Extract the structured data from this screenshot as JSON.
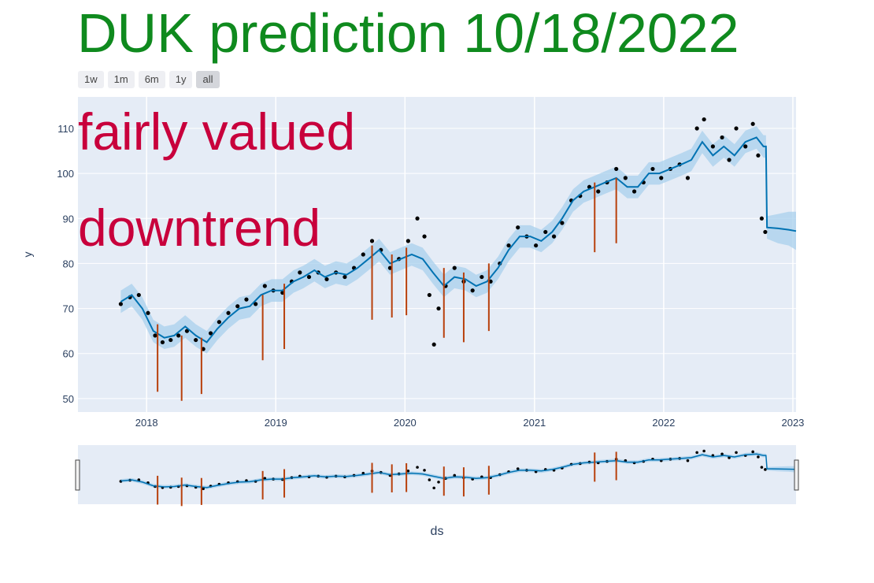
{
  "title": "DUK prediction 10/18/2022",
  "range_selector": {
    "buttons": [
      "1w",
      "1m",
      "6m",
      "1y",
      "all"
    ],
    "active": "all"
  },
  "annotations": [
    "fairly valued",
    "downtrend"
  ],
  "colors": {
    "title": "#0f8a1e",
    "annotation": "#c8003c",
    "plot_bg": "#e5ecf6",
    "points": "#000000",
    "trend": "#0072b2",
    "band": "#a8d0ec",
    "changepoints": "#b8400c"
  },
  "chart_data": {
    "type": "line",
    "xlabel": "ds",
    "ylabel": "y",
    "x_ticks": [
      "2018",
      "2019",
      "2020",
      "2021",
      "2022",
      "2023"
    ],
    "y_ticks": [
      50,
      60,
      70,
      80,
      90,
      100,
      110
    ],
    "xlim": [
      "2017-06-21",
      "2023-01-10"
    ],
    "ylim": [
      47,
      117
    ],
    "grid": true,
    "rangeslider": true,
    "series": [
      {
        "style": "markers",
        "x": [
          "2017-10-20",
          "2017-11-15",
          "2017-12-10",
          "2018-01-05",
          "2018-01-25",
          "2018-02-15",
          "2018-03-10",
          "2018-04-01",
          "2018-04-25",
          "2018-05-20",
          "2018-06-10",
          "2018-07-01",
          "2018-07-25",
          "2018-08-20",
          "2018-09-15",
          "2018-10-10",
          "2018-11-05",
          "2018-12-01",
          "2018-12-25",
          "2019-01-20",
          "2019-02-15",
          "2019-03-10",
          "2019-04-05",
          "2019-05-01",
          "2019-05-25",
          "2019-06-20",
          "2019-07-15",
          "2019-08-10",
          "2019-09-05",
          "2019-09-30",
          "2019-10-25",
          "2019-11-20",
          "2019-12-15",
          "2020-01-10",
          "2020-02-05",
          "2020-02-25",
          "2020-03-10",
          "2020-03-23",
          "2020-04-05",
          "2020-04-25",
          "2020-05-20",
          "2020-06-15",
          "2020-07-10",
          "2020-08-05",
          "2020-08-30",
          "2020-09-25",
          "2020-10-20",
          "2020-11-15",
          "2020-12-10",
          "2021-01-05",
          "2021-02-01",
          "2021-02-25",
          "2021-03-20",
          "2021-04-15",
          "2021-05-10",
          "2021-06-05",
          "2021-06-30",
          "2021-07-25",
          "2021-08-20",
          "2021-09-15",
          "2021-10-10",
          "2021-11-05",
          "2021-12-01",
          "2021-12-25",
          "2022-01-20",
          "2022-02-15",
          "2022-03-10",
          "2022-04-05",
          "2022-04-25",
          "2022-05-20",
          "2022-06-15",
          "2022-07-05",
          "2022-07-25",
          "2022-08-20",
          "2022-09-10",
          "2022-09-25",
          "2022-10-05",
          "2022-10-15"
        ],
        "y": [
          71,
          72.5,
          73,
          69,
          64,
          62.5,
          63,
          64,
          65,
          63,
          61,
          64.5,
          67,
          69,
          70.5,
          72,
          71,
          75,
          74,
          73.5,
          76,
          78,
          77,
          78,
          76.5,
          78,
          77,
          79,
          82,
          85,
          83,
          79,
          81,
          85,
          90,
          86,
          73,
          62,
          70,
          75,
          79,
          76,
          74,
          77,
          76,
          80,
          84,
          88,
          86,
          84,
          87,
          86,
          89,
          94,
          95,
          97,
          96,
          98,
          101,
          99,
          96,
          98,
          101,
          99,
          101,
          102,
          99,
          110,
          112,
          106,
          108,
          103,
          110,
          106,
          111,
          104,
          90,
          87
        ]
      },
      {
        "name": "",
        "style": "line",
        "x": [
          "2017-10-20",
          "2017-11-20",
          "2017-12-20",
          "2018-01-20",
          "2018-02-20",
          "2018-03-20",
          "2018-04-20",
          "2018-05-20",
          "2018-06-20",
          "2018-07-20",
          "2018-08-20",
          "2018-09-20",
          "2018-10-20",
          "2018-11-20",
          "2018-12-20",
          "2019-01-20",
          "2019-02-20",
          "2019-03-20",
          "2019-04-20",
          "2019-05-20",
          "2019-06-20",
          "2019-07-20",
          "2019-08-20",
          "2019-09-20",
          "2019-10-20",
          "2019-11-20",
          "2019-12-20",
          "2020-01-20",
          "2020-02-20",
          "2020-03-20",
          "2020-04-20",
          "2020-05-20",
          "2020-06-20",
          "2020-07-20",
          "2020-08-20",
          "2020-09-20",
          "2020-10-20",
          "2020-11-20",
          "2020-12-20",
          "2021-01-20",
          "2021-02-20",
          "2021-03-20",
          "2021-04-20",
          "2021-05-20",
          "2021-06-20",
          "2021-07-20",
          "2021-08-20",
          "2021-09-20",
          "2021-10-20",
          "2021-11-20",
          "2021-12-20",
          "2022-01-20",
          "2022-02-20",
          "2022-03-20",
          "2022-04-20",
          "2022-05-20",
          "2022-06-20",
          "2022-07-20",
          "2022-08-20",
          "2022-09-20",
          "2022-10-10",
          "2022-10-17",
          "2022-10-20",
          "2022-11-20",
          "2022-12-20",
          "2023-01-10"
        ],
        "y": [
          71.5,
          73,
          70,
          65,
          63.5,
          64,
          66,
          64,
          62.5,
          65.5,
          68,
          70,
          70.5,
          73,
          74,
          74,
          76,
          77,
          78.5,
          77,
          78,
          77.5,
          79,
          81,
          83,
          80,
          81,
          82,
          81,
          78,
          75,
          77,
          76.5,
          75,
          76,
          79,
          83,
          86,
          86,
          85,
          87,
          90,
          94,
          96,
          97,
          98,
          99,
          97,
          97,
          100,
          100,
          101,
          102,
          103,
          107,
          104,
          106,
          104,
          107,
          108,
          106,
          106,
          88,
          87.8,
          87.5,
          87.2
        ],
        "band": {
          "lower": [
            69,
            70.5,
            67.5,
            62.5,
            61,
            61.5,
            63.5,
            61.5,
            60,
            63,
            65.5,
            67.5,
            68,
            70.5,
            71.5,
            71.5,
            73.5,
            74.5,
            76,
            74.5,
            75.5,
            75,
            76.5,
            78.5,
            80.5,
            77.5,
            78.5,
            79.5,
            78.5,
            75.5,
            72.5,
            74.5,
            74,
            72.5,
            73.5,
            76.5,
            80.5,
            83.5,
            83.5,
            82.5,
            84.5,
            87.5,
            91.5,
            93.5,
            94.5,
            95.5,
            96.5,
            94.5,
            94.5,
            97.5,
            97.5,
            98.5,
            99.5,
            100.5,
            104.5,
            101.5,
            103.5,
            101.5,
            104.5,
            105.5,
            103.5,
            103.5,
            85.5,
            84.5,
            84,
            83
          ],
          "upper": [
            74,
            75.5,
            72.5,
            67.5,
            66,
            66.5,
            68.5,
            66.5,
            65,
            68,
            70.5,
            72.5,
            73,
            75.5,
            76.5,
            76.5,
            78.5,
            79.5,
            81,
            79.5,
            80.5,
            80,
            81.5,
            83.5,
            85.5,
            82.5,
            83.5,
            84.5,
            83.5,
            80.5,
            77.5,
            79.5,
            79,
            77.5,
            78.5,
            81.5,
            85.5,
            88.5,
            88.5,
            87.5,
            89.5,
            92.5,
            96.5,
            98.5,
            99.5,
            100.5,
            101.5,
            99.5,
            99.5,
            102.5,
            102.5,
            103.5,
            104.5,
            105.5,
            109.5,
            106.5,
            108.5,
            106.5,
            109.5,
            110.5,
            108.5,
            108.5,
            90.5,
            91,
            91.5,
            91.5
          ]
        }
      }
    ],
    "changepoints": [
      {
        "x": "2018-02-01",
        "y_top": 66.5,
        "y_bottom": 51.5
      },
      {
        "x": "2018-04-10",
        "y_top": 64,
        "y_bottom": 49.5
      },
      {
        "x": "2018-06-05",
        "y_top": 63.5,
        "y_bottom": 51
      },
      {
        "x": "2018-11-25",
        "y_top": 73,
        "y_bottom": 58.5
      },
      {
        "x": "2019-01-25",
        "y_top": 75.5,
        "y_bottom": 61
      },
      {
        "x": "2019-09-30",
        "y_top": 84,
        "y_bottom": 67.5
      },
      {
        "x": "2019-11-25",
        "y_top": 82,
        "y_bottom": 68
      },
      {
        "x": "2020-01-05",
        "y_top": 83.5,
        "y_bottom": 68.5
      },
      {
        "x": "2020-04-20",
        "y_top": 79,
        "y_bottom": 63.5
      },
      {
        "x": "2020-06-15",
        "y_top": 78,
        "y_bottom": 62.5
      },
      {
        "x": "2020-08-25",
        "y_top": 80,
        "y_bottom": 65
      },
      {
        "x": "2021-06-20",
        "y_top": 98,
        "y_bottom": 82.5
      },
      {
        "x": "2021-08-20",
        "y_top": 99,
        "y_bottom": 84.5
      }
    ]
  }
}
